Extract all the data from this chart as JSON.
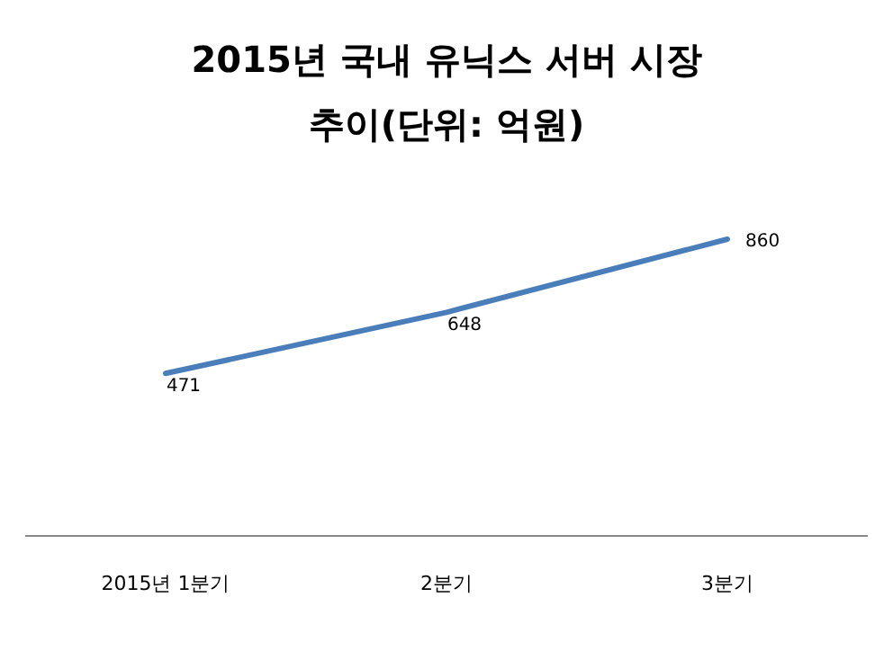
{
  "chart_data": {
    "type": "line",
    "title": "2015년 국내 유닉스 서버 시장 추이(단위: 억원)",
    "categories": [
      "2015년 1분기",
      "2분기",
      "3분기"
    ],
    "series": [
      {
        "color": "#4a7ebb",
        "values": [
          471,
          648,
          860
        ]
      }
    ],
    "data_labels": true,
    "marker": "none",
    "line_style": "solid"
  }
}
